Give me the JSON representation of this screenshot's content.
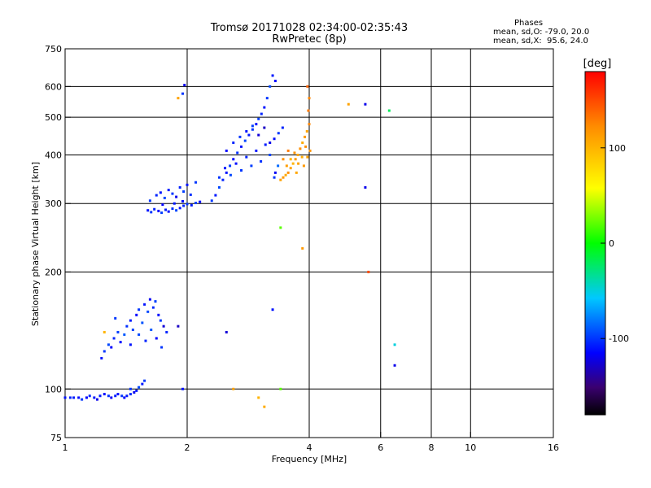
{
  "header": {
    "title": "Tromsø 20171028 02:34:00-02:35:43",
    "subtitle": "RwPretec (8p)",
    "stats_heading": "Phases",
    "stats_o": "mean, sd,O: -79.0, 20.0",
    "stats_x": "mean, sd,X:  95.6, 24.0"
  },
  "chart_data": {
    "type": "scatter",
    "title": "Tromsø 20171028 02:34:00-02:35:43",
    "subtitle": "RwPretec (8p)",
    "xlabel": "Frequency [MHz]",
    "ylabel": "Stationary phase Virtual Height [km]",
    "x_scale": "log",
    "y_scale": "log",
    "xlim": [
      1,
      16
    ],
    "ylim": [
      75,
      750
    ],
    "x_ticks": [
      1,
      2,
      4,
      6,
      8,
      10,
      16
    ],
    "x_tick_labels": [
      "1",
      "2",
      "4",
      "6",
      "8",
      "10",
      "16"
    ],
    "y_ticks": [
      75,
      100,
      200,
      300,
      400,
      500,
      600,
      750
    ],
    "y_tick_labels": [
      "75",
      "100",
      "200",
      "300",
      "400",
      "500",
      "600",
      "750"
    ],
    "x_grid": [
      2,
      4,
      6,
      8,
      10
    ],
    "y_grid": [
      100,
      200,
      300,
      400,
      500,
      600
    ],
    "grid": true,
    "colorbar": {
      "label": "[deg]",
      "range": [
        -180,
        180
      ],
      "ticks": [
        100,
        0,
        -100
      ],
      "tick_labels": [
        "100",
        "0",
        "-100"
      ],
      "colormap": "rainbow"
    },
    "series": [
      {
        "type": "scatter",
        "points": [
          [
            1.0,
            95,
            -110
          ],
          [
            1.03,
            95,
            -105
          ],
          [
            1.05,
            95,
            -108
          ],
          [
            1.08,
            95,
            -112
          ],
          [
            1.1,
            94,
            -100
          ],
          [
            1.13,
            95,
            -115
          ],
          [
            1.15,
            96,
            -105
          ],
          [
            1.18,
            95,
            -110
          ],
          [
            1.2,
            94,
            -120
          ],
          [
            1.22,
            96,
            -108
          ],
          [
            1.25,
            97,
            -113
          ],
          [
            1.28,
            96,
            -102
          ],
          [
            1.3,
            95,
            -118
          ],
          [
            1.33,
            96,
            -107
          ],
          [
            1.35,
            97,
            -112
          ],
          [
            1.38,
            96,
            -100
          ],
          [
            1.4,
            95,
            -115
          ],
          [
            1.42,
            96,
            -109
          ],
          [
            1.45,
            97,
            -104
          ],
          [
            1.48,
            98,
            -119
          ],
          [
            1.5,
            99,
            -110
          ],
          [
            1.52,
            101,
            -95
          ],
          [
            1.55,
            103,
            -108
          ],
          [
            1.57,
            105,
            -100
          ],
          [
            1.23,
            120,
            -110
          ],
          [
            1.25,
            125,
            -100
          ],
          [
            1.28,
            130,
            -95
          ],
          [
            1.3,
            128,
            -115
          ],
          [
            1.32,
            135,
            -105
          ],
          [
            1.35,
            140,
            -98
          ],
          [
            1.37,
            132,
            -112
          ],
          [
            1.4,
            138,
            -90
          ],
          [
            1.42,
            145,
            -102
          ],
          [
            1.45,
            150,
            -108
          ],
          [
            1.47,
            142,
            -96
          ],
          [
            1.5,
            155,
            -115
          ],
          [
            1.52,
            160,
            -100
          ],
          [
            1.55,
            148,
            -92
          ],
          [
            1.57,
            165,
            -110
          ],
          [
            1.6,
            158,
            -95
          ],
          [
            1.62,
            170,
            -118
          ],
          [
            1.65,
            162,
            -103
          ],
          [
            1.67,
            168,
            -97
          ],
          [
            1.7,
            155,
            -112
          ],
          [
            1.72,
            150,
            -99
          ],
          [
            1.75,
            145,
            -125
          ],
          [
            1.78,
            140,
            -105
          ],
          [
            1.33,
            152,
            -100
          ],
          [
            1.45,
            130,
            -110
          ],
          [
            1.52,
            138,
            -95
          ],
          [
            1.58,
            133,
            -105
          ],
          [
            1.63,
            142,
            -90
          ],
          [
            1.68,
            135,
            -115
          ],
          [
            1.73,
            128,
            -100
          ],
          [
            1.6,
            288,
            -110
          ],
          [
            1.63,
            285,
            -100
          ],
          [
            1.66,
            290,
            -105
          ],
          [
            1.7,
            287,
            -115
          ],
          [
            1.73,
            284,
            -98
          ],
          [
            1.77,
            289,
            -108
          ],
          [
            1.8,
            286,
            -112
          ],
          [
            1.84,
            291,
            -102
          ],
          [
            1.88,
            288,
            -95
          ],
          [
            1.92,
            292,
            -110
          ],
          [
            1.96,
            296,
            -105
          ],
          [
            2.0,
            299,
            -100
          ],
          [
            2.05,
            297,
            -108
          ],
          [
            2.1,
            301,
            -97
          ],
          [
            2.15,
            303,
            -112
          ],
          [
            1.62,
            305,
            -100
          ],
          [
            1.68,
            315,
            -105
          ],
          [
            1.72,
            320,
            -110
          ],
          [
            1.76,
            310,
            -95
          ],
          [
            1.8,
            325,
            -108
          ],
          [
            1.84,
            318,
            -100
          ],
          [
            1.88,
            312,
            -120
          ],
          [
            1.92,
            330,
            -105
          ],
          [
            1.96,
            322,
            -98
          ],
          [
            2.0,
            335,
            -110
          ],
          [
            2.04,
            316,
            -102
          ],
          [
            1.74,
            298,
            -115
          ],
          [
            1.86,
            300,
            -108
          ],
          [
            1.95,
            304,
            -112
          ],
          [
            2.3,
            305,
            -100
          ],
          [
            2.35,
            315,
            -108
          ],
          [
            2.4,
            330,
            -95
          ],
          [
            2.45,
            345,
            -105
          ],
          [
            2.5,
            360,
            -110
          ],
          [
            2.55,
            375,
            -98
          ],
          [
            2.6,
            390,
            -115
          ],
          [
            2.66,
            405,
            -102
          ],
          [
            2.72,
            420,
            -110
          ],
          [
            2.78,
            435,
            -95
          ],
          [
            2.84,
            450,
            -108
          ],
          [
            2.9,
            465,
            -100
          ],
          [
            2.96,
            480,
            -112
          ],
          [
            3.0,
            495,
            -98
          ],
          [
            3.05,
            510,
            -105
          ],
          [
            3.1,
            530,
            -110
          ],
          [
            3.15,
            560,
            -100
          ],
          [
            3.2,
            600,
            -95
          ],
          [
            3.25,
            640,
            -108
          ],
          [
            3.3,
            620,
            -115
          ],
          [
            2.4,
            350,
            -100
          ],
          [
            2.48,
            370,
            -108
          ],
          [
            2.56,
            355,
            -95
          ],
          [
            2.64,
            380,
            -112
          ],
          [
            2.72,
            365,
            -100
          ],
          [
            2.8,
            395,
            -105
          ],
          [
            2.88,
            375,
            -98
          ],
          [
            2.96,
            410,
            -110
          ],
          [
            3.04,
            385,
            -102
          ],
          [
            3.12,
            425,
            -108
          ],
          [
            3.2,
            400,
            -95
          ],
          [
            3.28,
            440,
            -112
          ],
          [
            3.36,
            455,
            -100
          ],
          [
            3.44,
            470,
            -105
          ],
          [
            2.5,
            410,
            -115
          ],
          [
            2.6,
            430,
            -105
          ],
          [
            2.7,
            445,
            -100
          ],
          [
            2.8,
            460,
            -110
          ],
          [
            2.9,
            475,
            -98
          ],
          [
            3.0,
            450,
            -125
          ],
          [
            3.1,
            470,
            -130
          ],
          [
            3.2,
            430,
            -120
          ],
          [
            3.3,
            360,
            -118
          ],
          [
            3.35,
            375,
            -85
          ],
          [
            3.28,
            350,
            -100
          ],
          [
            3.4,
            345,
            110
          ],
          [
            3.45,
            350,
            115
          ],
          [
            3.5,
            355,
            105
          ],
          [
            3.55,
            360,
            120
          ],
          [
            3.6,
            370,
            110
          ],
          [
            3.65,
            380,
            100
          ],
          [
            3.7,
            390,
            115
          ],
          [
            3.75,
            400,
            108
          ],
          [
            3.8,
            415,
            120
          ],
          [
            3.85,
            430,
            105
          ],
          [
            3.9,
            445,
            115
          ],
          [
            3.95,
            460,
            110
          ],
          [
            4.0,
            480,
            125
          ],
          [
            3.98,
            520,
            130
          ],
          [
            4.0,
            560,
            125
          ],
          [
            3.96,
            600,
            140
          ],
          [
            3.52,
            375,
            112
          ],
          [
            3.6,
            390,
            100
          ],
          [
            3.68,
            405,
            118
          ],
          [
            3.76,
            380,
            110
          ],
          [
            3.84,
            395,
            105
          ],
          [
            3.92,
            420,
            122
          ],
          [
            3.45,
            390,
            120
          ],
          [
            3.55,
            410,
            130
          ],
          [
            3.72,
            360,
            108
          ],
          [
            3.88,
            375,
            115
          ],
          [
            3.96,
            395,
            112
          ],
          [
            4.02,
            410,
            118
          ],
          [
            1.95,
            575,
            -100
          ],
          [
            1.9,
            560,
            110
          ],
          [
            1.97,
            605,
            -120
          ],
          [
            2.1,
            340,
            -100
          ],
          [
            2.5,
            140,
            -125
          ],
          [
            2.6,
            100,
            110
          ],
          [
            3.0,
            95,
            100
          ],
          [
            3.1,
            90,
            105
          ],
          [
            3.4,
            100,
            20
          ],
          [
            3.4,
            260,
            20
          ],
          [
            3.25,
            160,
            -110
          ],
          [
            3.85,
            230,
            115
          ],
          [
            5.0,
            540,
            110
          ],
          [
            5.5,
            540,
            -120
          ],
          [
            5.6,
            200,
            150
          ],
          [
            5.5,
            330,
            -120
          ],
          [
            6.3,
            520,
            -20
          ],
          [
            6.5,
            130,
            -50
          ],
          [
            6.5,
            115,
            -120
          ],
          [
            1.9,
            145,
            -130
          ],
          [
            1.95,
            100,
            -110
          ],
          [
            1.25,
            140,
            100
          ],
          [
            1.45,
            100,
            -100
          ]
        ]
      }
    ]
  }
}
